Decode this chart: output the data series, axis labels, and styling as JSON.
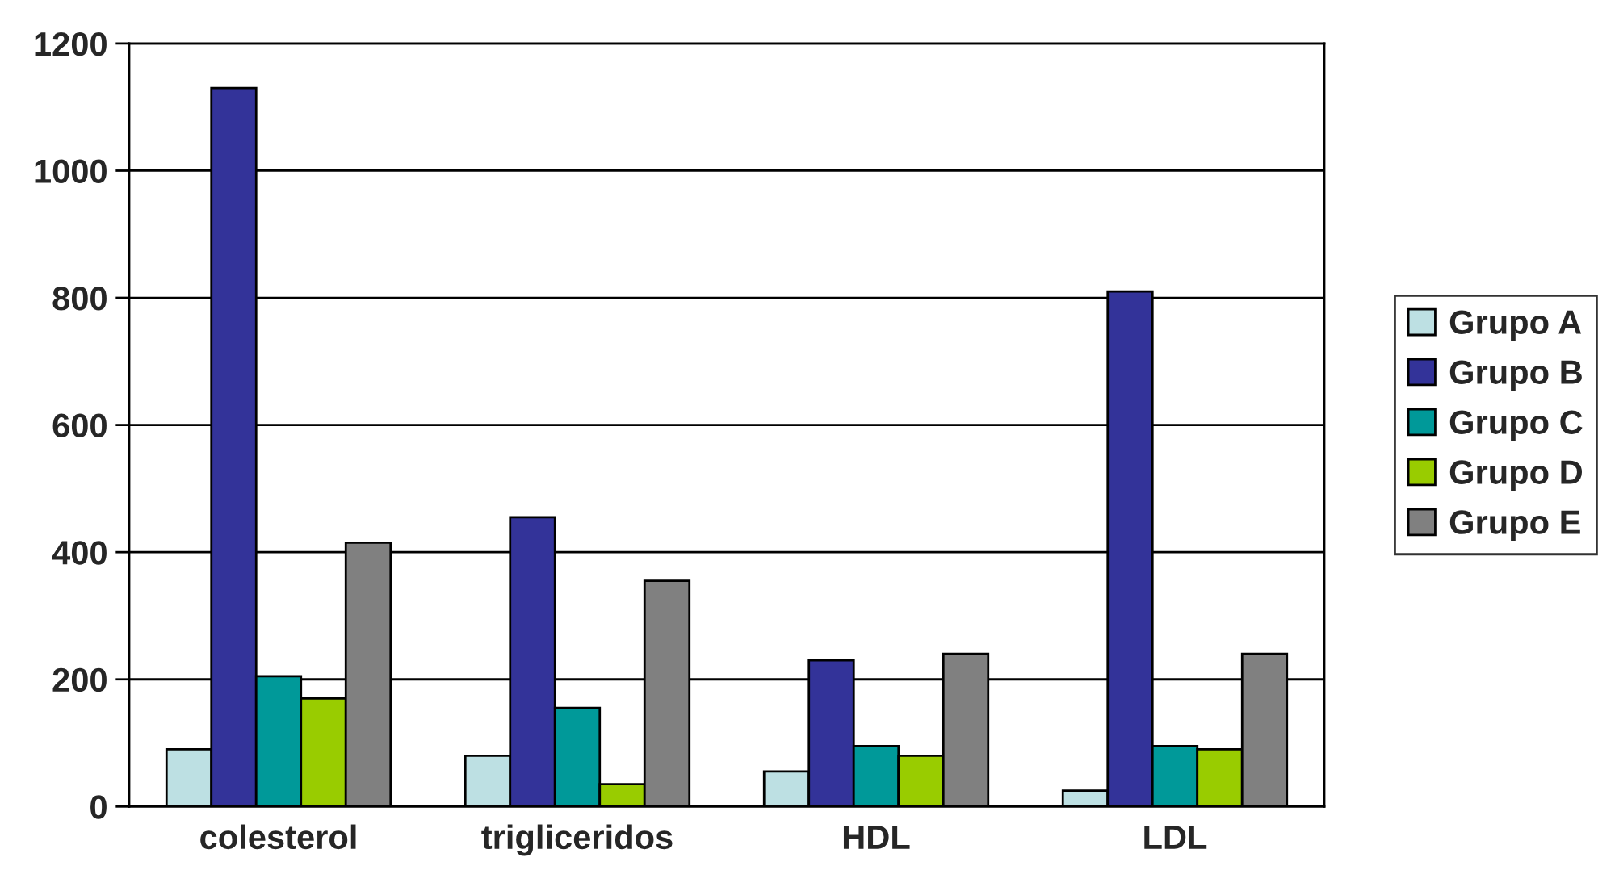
{
  "chart_data": {
    "type": "bar",
    "categories": [
      "colesterol",
      "trigliceridos",
      "HDL",
      "LDL"
    ],
    "series": [
      {
        "name": "Grupo A",
        "color": "#bde0e3",
        "values": [
          90,
          80,
          55,
          25
        ]
      },
      {
        "name": "Grupo B",
        "color": "#333399",
        "values": [
          1130,
          455,
          230,
          810
        ]
      },
      {
        "name": "Grupo C",
        "color": "#009999",
        "values": [
          205,
          155,
          95,
          95
        ]
      },
      {
        "name": "Grupo D",
        "color": "#99cc00",
        "values": [
          170,
          35,
          80,
          90
        ]
      },
      {
        "name": "Grupo E",
        "color": "#808080",
        "values": [
          415,
          355,
          240,
          240
        ]
      }
    ],
    "ylim": [
      0,
      1200
    ],
    "yticks": [
      0,
      200,
      400,
      600,
      800,
      1000,
      1200
    ],
    "grid": "y",
    "legend": "right"
  }
}
